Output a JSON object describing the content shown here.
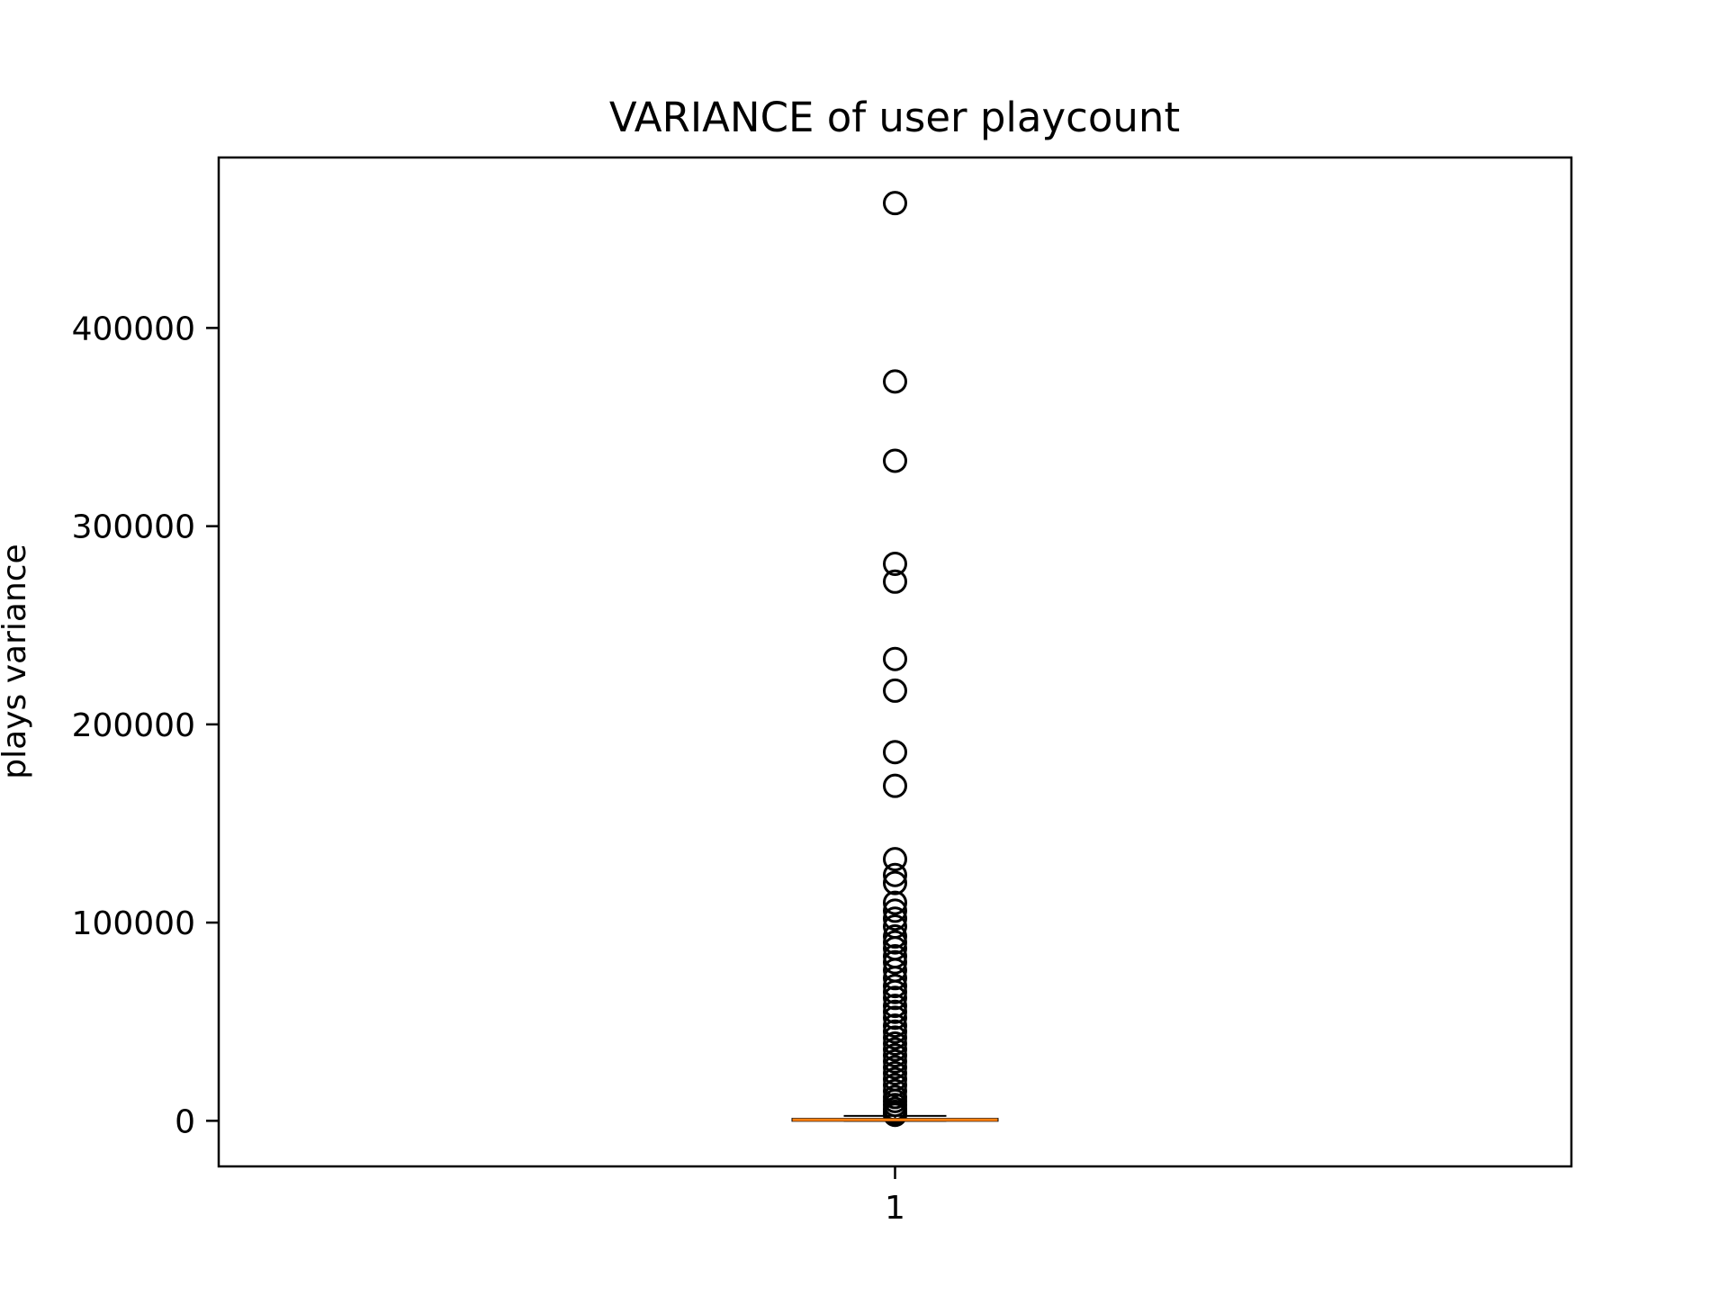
{
  "chart_data": {
    "type": "box",
    "title": "VARIANCE of user playcount",
    "xlabel": "",
    "ylabel": "plays variance",
    "categories": [
      "1"
    ],
    "ylim": [
      -23000,
      486000
    ],
    "yticks": [
      0,
      100000,
      200000,
      300000,
      400000
    ],
    "ytick_labels": [
      "0",
      "100000",
      "200000",
      "300000",
      "400000"
    ],
    "grid": false,
    "legend": "none",
    "box": {
      "q1": 0,
      "median": 500,
      "q3": 1000,
      "whisker_low": 0,
      "whisker_high": 2500
    },
    "outliers": [
      463000,
      373000,
      333000,
      281000,
      272000,
      233000,
      217000,
      186000,
      169000,
      132000,
      124000,
      120000,
      110000,
      106000,
      102000,
      98000,
      93000,
      90000,
      87000,
      83000,
      80000,
      76000,
      72000,
      68000,
      65000,
      62000,
      58000,
      55000,
      52000,
      48000,
      45000,
      42000,
      39000,
      36000,
      33000,
      30000,
      27000,
      24000,
      21000,
      18000,
      15000,
      12000,
      10000,
      8000,
      6000,
      4500,
      3500,
      3000
    ],
    "colors": {
      "median": "#ff7f0e",
      "outlier_edge": "#000000",
      "axes": "#000000"
    }
  }
}
